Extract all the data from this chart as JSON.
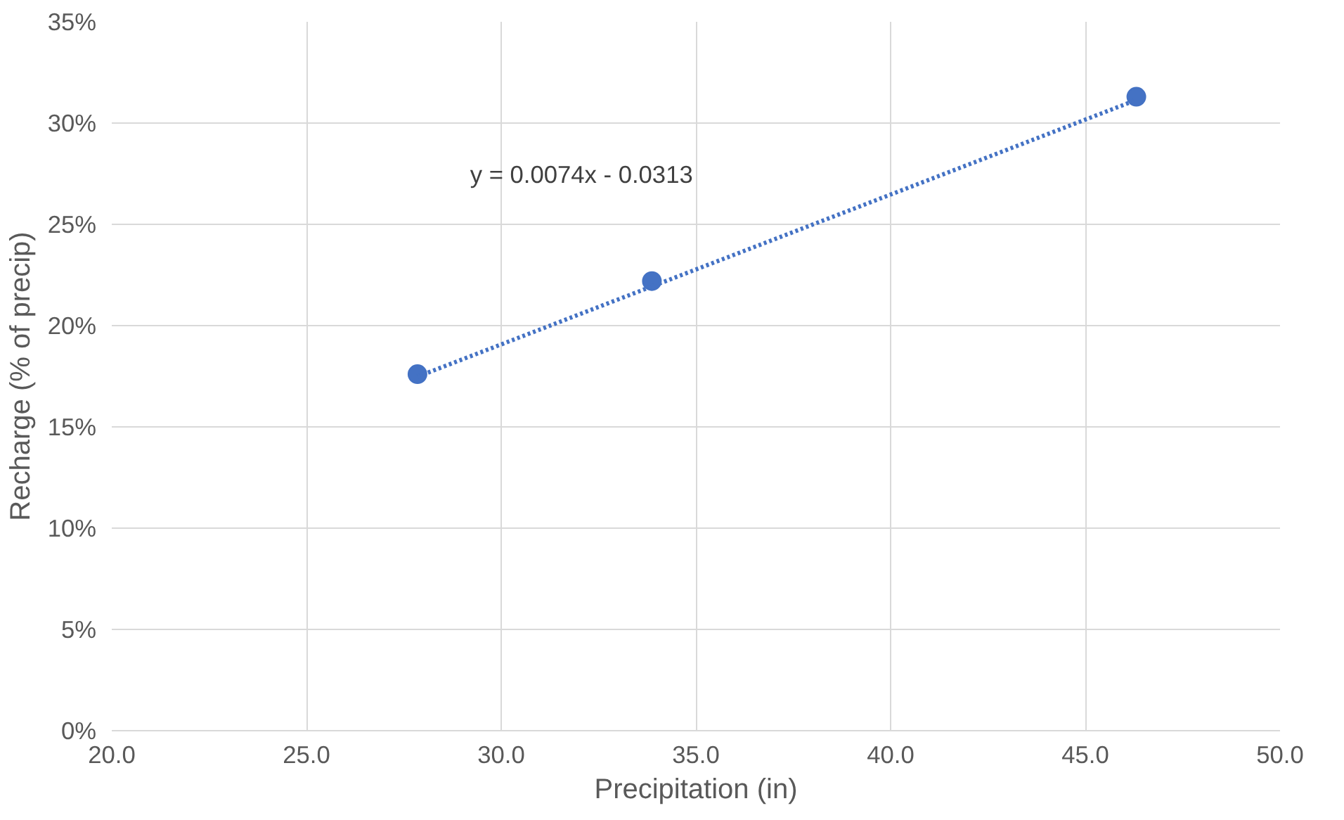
{
  "chart_data": {
    "type": "scatter",
    "xlabel": "Precipitation (in)",
    "ylabel": "Recharge (% of precip)",
    "series": [
      {
        "color": "#4472c4",
        "x": [
          27.85,
          33.87,
          46.31
        ],
        "values": [
          17.6,
          22.2,
          31.3
        ],
        "marker": "circle"
      },
      {
        "type": "line",
        "color": "#4472c4",
        "x": [
          27.85,
          46.31
        ],
        "values": [
          17.48,
          31.14
        ],
        "line_style": "dotted"
      }
    ],
    "annotations": [
      "y = 0.0074x - 0.0313"
    ],
    "xlim": [
      20,
      50
    ],
    "ylim": [
      0,
      35
    ],
    "xticks": [
      {
        "value": 20,
        "label": "20.0"
      },
      {
        "value": 25,
        "label": "25.0"
      },
      {
        "value": 30,
        "label": "30.0"
      },
      {
        "value": 35,
        "label": "35.0"
      },
      {
        "value": 40,
        "label": "40.0"
      },
      {
        "value": 45,
        "label": "45.0"
      },
      {
        "value": 50,
        "label": "50.0"
      }
    ],
    "yticks": [
      {
        "value": 0,
        "label": "0%"
      },
      {
        "value": 5,
        "label": "5%"
      },
      {
        "value": 10,
        "label": "10%"
      },
      {
        "value": 15,
        "label": "15%"
      },
      {
        "value": 20,
        "label": "20%"
      },
      {
        "value": 25,
        "label": "25%"
      },
      {
        "value": 30,
        "label": "30%"
      },
      {
        "value": 35,
        "label": "35%"
      }
    ],
    "grid": true
  }
}
